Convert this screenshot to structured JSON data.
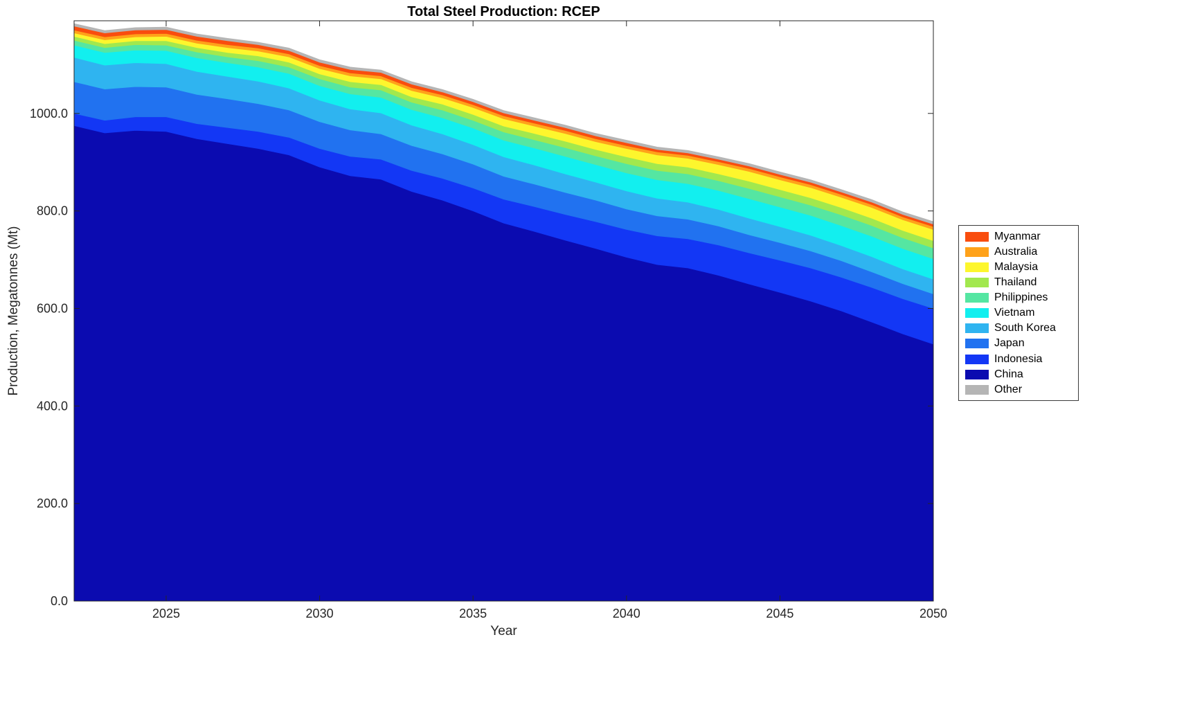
{
  "figure": {
    "title": "Total Steel Production: RCEP",
    "xlabel": "Year",
    "ylabel": "Production, Megatonnes (Mt)"
  },
  "chart_data": {
    "type": "area",
    "stacked": true,
    "title": "Total Steel Production: RCEP",
    "xlabel": "Year",
    "ylabel": "Production, Megatonnes (Mt)",
    "x_range": [
      2022,
      2050
    ],
    "y_range": [
      0,
      1190
    ],
    "x_ticks": [
      2025,
      2030,
      2035,
      2040,
      2045,
      2050
    ],
    "x_tick_labels": [
      "2025",
      "2030",
      "2035",
      "2040",
      "2045",
      "2050"
    ],
    "y_ticks": [
      0,
      200,
      400,
      600,
      800,
      1000
    ],
    "y_tick_labels": [
      "0.0",
      "200.0",
      "400.0",
      "600.0",
      "800.0",
      "1000.0"
    ],
    "grid": false,
    "legend_position": "right-outside",
    "legend_order_top_to_bottom": [
      "Myanmar",
      "Australia",
      "Malaysia",
      "Thailand",
      "Philippines",
      "Vietnam",
      "South Korea",
      "Japan",
      "Indonesia",
      "China",
      "Other"
    ],
    "stack_order_bottom_to_top": [
      "China",
      "Indonesia",
      "Japan",
      "South Korea",
      "Vietnam",
      "Philippines",
      "Thailand",
      "Malaysia",
      "Australia",
      "Myanmar",
      "Other"
    ],
    "years": [
      2022,
      2023,
      2024,
      2025,
      2026,
      2027,
      2028,
      2029,
      2030,
      2031,
      2032,
      2033,
      2034,
      2035,
      2036,
      2037,
      2038,
      2039,
      2040,
      2041,
      2042,
      2043,
      2044,
      2045,
      2046,
      2047,
      2048,
      2049,
      2050
    ],
    "series": [
      {
        "name": "China",
        "color": "#0b0bb0",
        "values": [
          975,
          960,
          965,
          963,
          948,
          938,
          928,
          915,
          890,
          872,
          865,
          840,
          822,
          800,
          775,
          758,
          740,
          723,
          705,
          690,
          683,
          668,
          650,
          633,
          615,
          595,
          572,
          548,
          527
        ]
      },
      {
        "name": "Indonesia",
        "color": "#1337f5",
        "values": [
          25,
          26,
          28,
          30,
          31,
          33,
          35,
          36,
          38,
          40,
          41,
          43,
          45,
          47,
          49,
          51,
          53,
          55,
          57,
          59,
          60,
          62,
          64,
          66,
          68,
          69,
          71,
          72,
          73
        ]
      },
      {
        "name": "Japan",
        "color": "#2172f0",
        "values": [
          65,
          64,
          62,
          61,
          60,
          59,
          57,
          56,
          55,
          54,
          52,
          51,
          50,
          49,
          47,
          46,
          45,
          44,
          42,
          41,
          40,
          39,
          37,
          36,
          35,
          34,
          32,
          31,
          30
        ]
      },
      {
        "name": "South Korea",
        "color": "#2fb4f0",
        "values": [
          50,
          49,
          49,
          48,
          47,
          46,
          46,
          45,
          44,
          43,
          43,
          42,
          41,
          40,
          40,
          39,
          38,
          37,
          37,
          36,
          35,
          34,
          34,
          33,
          32,
          31,
          31,
          30,
          30
        ]
      },
      {
        "name": "Vietnam",
        "color": "#12efef",
        "values": [
          25,
          26,
          26,
          27,
          28,
          28,
          29,
          30,
          30,
          31,
          32,
          32,
          33,
          34,
          34,
          35,
          36,
          36,
          37,
          38,
          38,
          39,
          40,
          40,
          41,
          41,
          42,
          42,
          42
        ]
      },
      {
        "name": "Philippines",
        "color": "#55e6a2",
        "values": [
          10,
          10,
          11,
          11,
          12,
          12,
          13,
          13,
          14,
          14,
          15,
          15,
          16,
          16,
          17,
          17,
          18,
          18,
          19,
          19,
          20,
          20,
          21,
          21,
          21,
          22,
          22,
          22,
          22
        ]
      },
      {
        "name": "Thailand",
        "color": "#a2e84e",
        "values": [
          8,
          8,
          8,
          9,
          9,
          9,
          10,
          10,
          10,
          11,
          11,
          11,
          12,
          12,
          12,
          13,
          13,
          13,
          14,
          14,
          14,
          14,
          15,
          15,
          15,
          15,
          15,
          15,
          15
        ]
      },
      {
        "name": "Malaysia",
        "color": "#fdf62d",
        "values": [
          7,
          8,
          8,
          9,
          9,
          10,
          10,
          11,
          11,
          12,
          12,
          13,
          13,
          14,
          15,
          15,
          16,
          16,
          17,
          18,
          18,
          19,
          20,
          20,
          21,
          21,
          22,
          22,
          23
        ]
      },
      {
        "name": "Australia",
        "color": "#ffa21a",
        "values": [
          6,
          6,
          6,
          6,
          6,
          6,
          6,
          6,
          6,
          6,
          6,
          6,
          6,
          6,
          6,
          6,
          6,
          6,
          6,
          6,
          6,
          6,
          6,
          6,
          6,
          6,
          6,
          6,
          6
        ]
      },
      {
        "name": "Myanmar",
        "color": "#f94d0e",
        "values": [
          8,
          8,
          8,
          8,
          8,
          8,
          7,
          7,
          7,
          7,
          7,
          7,
          6,
          6,
          6,
          6,
          6,
          6,
          6,
          5,
          5,
          5,
          5,
          5,
          5,
          5,
          5,
          5,
          5
        ]
      },
      {
        "name": "Other",
        "color": "#b5b5b5",
        "values": [
          5,
          5,
          5,
          5,
          5,
          5,
          5,
          5,
          5,
          5,
          5,
          5,
          5,
          5,
          5,
          5,
          5,
          5,
          5,
          5,
          5,
          5,
          5,
          5,
          5,
          5,
          5,
          5,
          5
        ]
      }
    ]
  }
}
